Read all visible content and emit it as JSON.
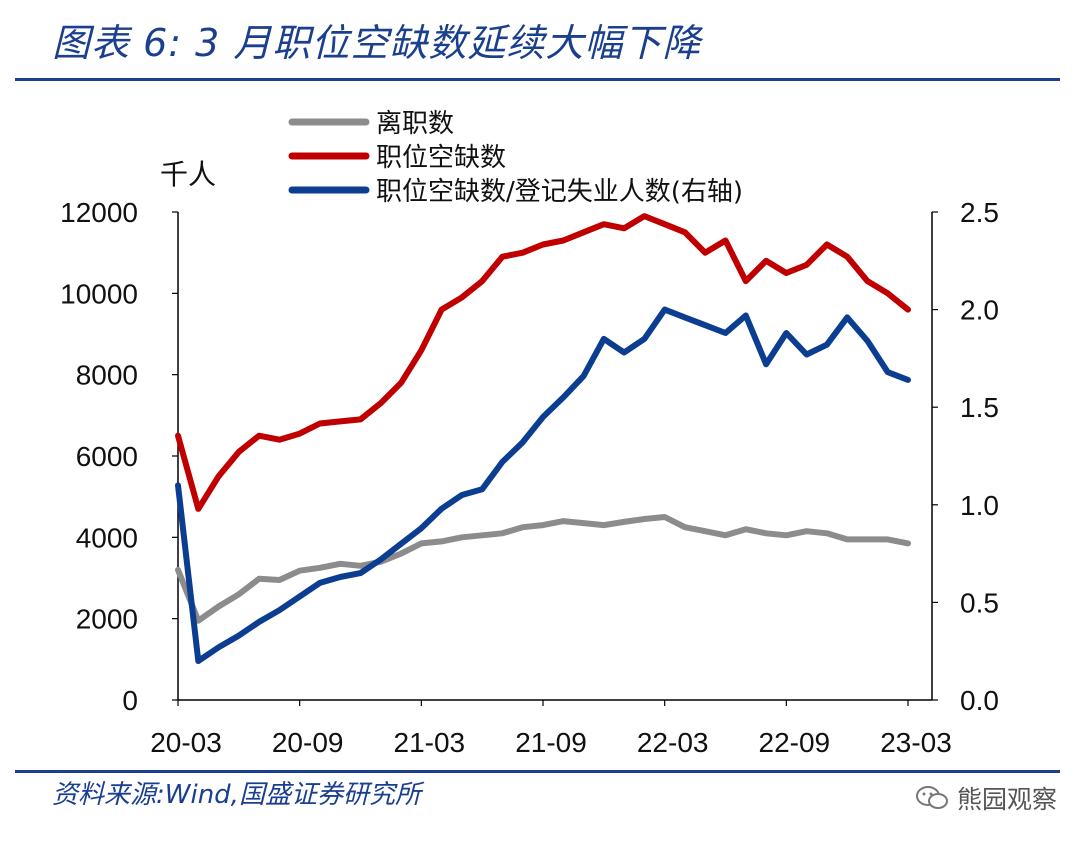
{
  "header": {
    "title": "图表 6:  3 月职位空缺数延续大幅下降"
  },
  "footer": {
    "source": "资料来源:Wind,国盛证券研究所",
    "watermark": "熊园观察"
  },
  "colors": {
    "accent": "#1b3f8f",
    "quits": "#8c8c8c",
    "openings": "#c00000",
    "ratio": "#0b3d91"
  },
  "chart_data": {
    "type": "line",
    "title": "",
    "ylabel_left": "千人",
    "x_tick_labels": [
      "20-03",
      "20-09",
      "21-03",
      "21-09",
      "22-03",
      "22-09",
      "23-03"
    ],
    "x": [
      "20-03",
      "20-04",
      "20-05",
      "20-06",
      "20-07",
      "20-08",
      "20-09",
      "20-10",
      "20-11",
      "20-12",
      "21-01",
      "21-02",
      "21-03",
      "21-04",
      "21-05",
      "21-06",
      "21-07",
      "21-08",
      "21-09",
      "21-10",
      "21-11",
      "21-12",
      "22-01",
      "22-02",
      "22-03",
      "22-04",
      "22-05",
      "22-06",
      "22-07",
      "22-08",
      "22-09",
      "22-10",
      "22-11",
      "22-12",
      "23-01",
      "23-02",
      "23-03"
    ],
    "ylim_left": [
      0,
      12000
    ],
    "yticks_left": [
      "0",
      "2000",
      "4000",
      "6000",
      "8000",
      "10000",
      "12000"
    ],
    "ylim_right": [
      0,
      2.5
    ],
    "yticks_right": [
      "0.0",
      "0.5",
      "1.0",
      "1.5",
      "2.0",
      "2.5"
    ],
    "legend_position": "top",
    "series": [
      {
        "name": "离职数",
        "axis": "left",
        "color": "#8c8c8c",
        "values": [
          3200,
          1950,
          2300,
          2600,
          2980,
          2950,
          3180,
          3250,
          3350,
          3300,
          3400,
          3600,
          3850,
          3900,
          4000,
          4050,
          4100,
          4250,
          4300,
          4400,
          4350,
          4300,
          4380,
          4450,
          4500,
          4250,
          4150,
          4050,
          4200,
          4100,
          4050,
          4150,
          4100,
          3950,
          3950,
          3950,
          3850
        ]
      },
      {
        "name": "职位空缺数",
        "axis": "left",
        "color": "#c00000",
        "values": [
          6500,
          4700,
          5500,
          6100,
          6500,
          6400,
          6550,
          6800,
          6850,
          6900,
          7300,
          7800,
          8600,
          9600,
          9900,
          10300,
          10900,
          11000,
          11200,
          11300,
          11500,
          11700,
          11600,
          11900,
          11700,
          11500,
          11000,
          11300,
          10300,
          10800,
          10500,
          10700,
          11200,
          10900,
          10300,
          10000,
          9600
        ]
      },
      {
        "name": "职位空缺数/登记失业人数(右轴)",
        "axis": "right",
        "color": "#0b3d91",
        "values": [
          1.1,
          0.2,
          0.27,
          0.33,
          0.4,
          0.46,
          0.53,
          0.6,
          0.63,
          0.65,
          0.72,
          0.8,
          0.88,
          0.98,
          1.05,
          1.08,
          1.22,
          1.32,
          1.45,
          1.55,
          1.66,
          1.85,
          1.78,
          1.85,
          2.0,
          1.96,
          1.92,
          1.88,
          1.97,
          1.72,
          1.88,
          1.77,
          1.82,
          1.96,
          1.84,
          1.68,
          1.64
        ]
      }
    ]
  }
}
